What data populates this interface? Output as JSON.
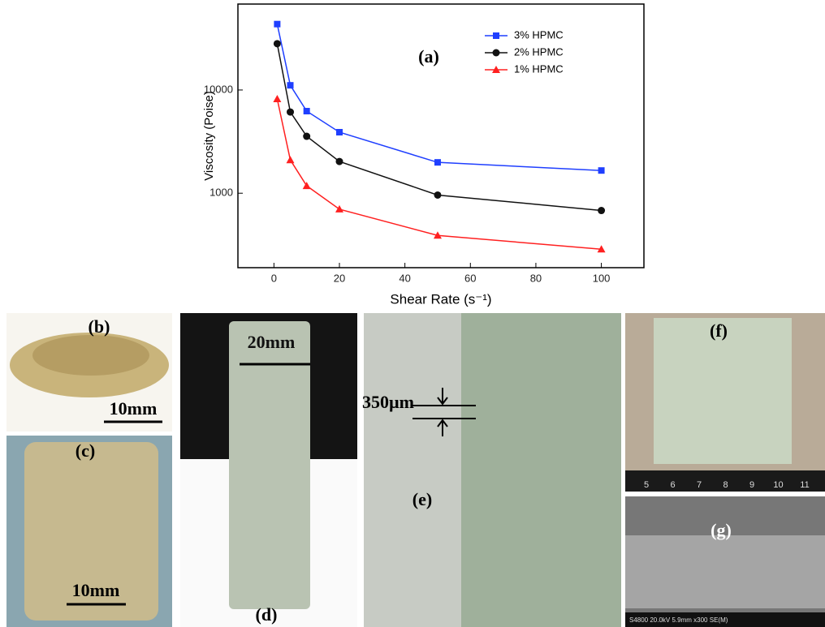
{
  "chart_data": {
    "type": "line",
    "annotation": "(a)",
    "x_label": "Shear Rate (s⁻¹)",
    "y_label": "Viscosity (Poise)",
    "yscale": "log",
    "legend": "top-right",
    "xlim": [
      -11,
      113
    ],
    "ylim": [
      190,
      68000
    ],
    "xticks": [
      0,
      20,
      40,
      60,
      80,
      100
    ],
    "yticks": [
      1000,
      10000
    ],
    "series": [
      {
        "name": "3% HPMC",
        "color": "#1f3fff",
        "marker": "square",
        "x": [
          1,
          5,
          10,
          20,
          50,
          100
        ],
        "values": [
          43500,
          11100,
          6240,
          3900,
          1990,
          1660
        ]
      },
      {
        "name": "2% HPMC",
        "color": "#111111",
        "marker": "circle",
        "x": [
          1,
          5,
          10,
          20,
          50,
          100
        ],
        "values": [
          28100,
          6120,
          3560,
          2030,
          960,
          680
        ]
      },
      {
        "name": "1% HPMC",
        "color": "#ff2020",
        "marker": "triangle",
        "x": [
          1,
          5,
          10,
          20,
          50,
          100
        ],
        "values": [
          8190,
          2100,
          1180,
          700,
          390,
          287
        ]
      }
    ]
  },
  "panels": [
    {
      "label": "(b)",
      "scale": "10mm"
    },
    {
      "label": "(c)",
      "scale": "10mm"
    },
    {
      "label": "(d)",
      "scale": "20mm"
    },
    {
      "label": "(e)",
      "scale": "350µm"
    },
    {
      "label": "(f)",
      "ruler": [
        "5",
        "6",
        "7",
        "8",
        "9",
        "10",
        "11"
      ]
    },
    {
      "label": "(g)",
      "caption": "S4800 20.0kV 5.9mm x300 SE(M)"
    }
  ]
}
